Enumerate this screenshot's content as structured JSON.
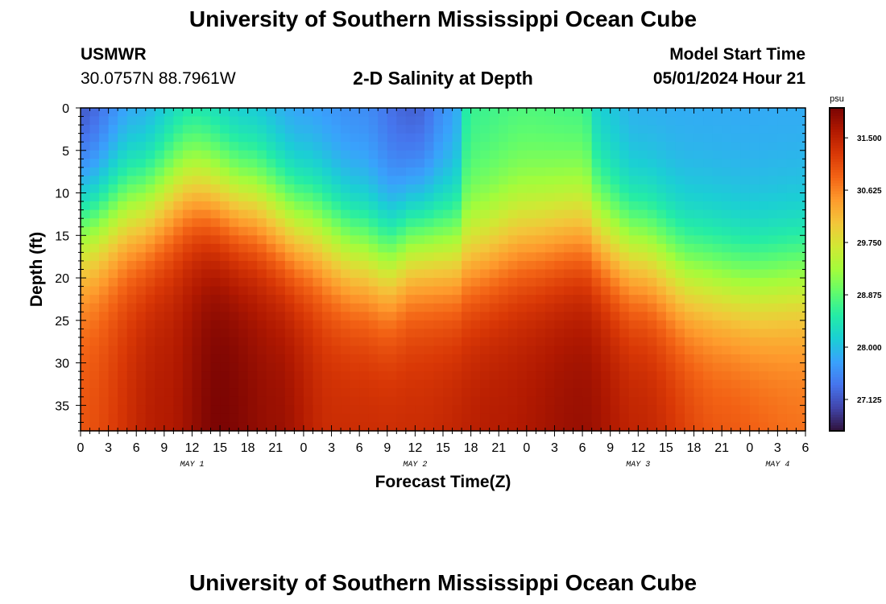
{
  "header": {
    "title_top": "University of Southern Mississippi Ocean Cube",
    "title_bottom": "University of Southern Mississippi Ocean Cube",
    "station": "USMWR",
    "coords": "30.0757N  88.7961W",
    "subtitle": "2-D Salinity at Depth",
    "model_start_label": "Model Start Time",
    "model_start_value": "05/01/2024 Hour 21"
  },
  "chart_data": {
    "type": "heatmap",
    "title": "2-D Salinity at Depth",
    "xlabel": "Forecast Time(Z)",
    "ylabel": "Depth (ft)",
    "colorbar_label": "psu",
    "x_range_hours": [
      0,
      78
    ],
    "y_range_ft": [
      0,
      38
    ],
    "x_tick_labels": [
      "0",
      "3",
      "6",
      "9",
      "12",
      "15",
      "18",
      "21",
      "0",
      "3",
      "6",
      "9",
      "12",
      "15",
      "18",
      "21",
      "0",
      "3",
      "6",
      "9",
      "12",
      "15",
      "18",
      "21",
      "0",
      "3",
      "6"
    ],
    "x_tick_step_hours": 3,
    "day_labels": [
      {
        "label": "MAY 1",
        "hour": 12
      },
      {
        "label": "MAY 2",
        "hour": 36
      },
      {
        "label": "MAY 3",
        "hour": 60
      },
      {
        "label": "MAY 4",
        "hour": 75
      }
    ],
    "y_ticks": [
      0,
      5,
      10,
      15,
      20,
      25,
      30,
      35
    ],
    "colorbar_range": [
      26.6,
      32.0
    ],
    "colorbar_ticks": [
      "27.125",
      "28.000",
      "28.875",
      "29.750",
      "30.625",
      "31.500"
    ],
    "colorbar_tick_values": [
      27.125,
      28.0,
      28.875,
      29.75,
      30.625,
      31.5
    ],
    "colormap": [
      "#30123b",
      "#4145ab",
      "#4675ed",
      "#39a2fc",
      "#1bcfd4",
      "#24eca6",
      "#61fc6c",
      "#a4fc3b",
      "#d1e834",
      "#f3c63a",
      "#fe9b2d",
      "#f36315",
      "#d93806",
      "#b11901",
      "#7a0403"
    ],
    "surface_salinity": [
      {
        "hour": 0,
        "value": 27.0
      },
      {
        "hour": 6,
        "value": 27.6
      },
      {
        "hour": 12,
        "value": 28.0
      },
      {
        "hour": 18,
        "value": 27.8
      },
      {
        "hour": 24,
        "value": 27.6
      },
      {
        "hour": 30,
        "value": 27.5
      },
      {
        "hour": 36,
        "value": 27.1
      },
      {
        "hour": 40,
        "value": 27.6
      },
      {
        "hour": 42,
        "value": 28.6
      },
      {
        "hour": 48,
        "value": 28.7
      },
      {
        "hour": 54,
        "value": 28.6
      },
      {
        "hour": 56,
        "value": 28.0
      },
      {
        "hour": 60,
        "value": 27.8
      },
      {
        "hour": 66,
        "value": 27.8
      },
      {
        "hour": 72,
        "value": 27.8
      },
      {
        "hour": 78,
        "value": 27.8
      }
    ],
    "bottom_salinity": [
      {
        "hour": 0,
        "value": 31.0
      },
      {
        "hour": 9,
        "value": 31.6
      },
      {
        "hour": 15,
        "value": 32.0
      },
      {
        "hour": 21,
        "value": 31.8
      },
      {
        "hour": 27,
        "value": 31.4
      },
      {
        "hour": 36,
        "value": 31.4
      },
      {
        "hour": 45,
        "value": 31.6
      },
      {
        "hour": 54,
        "value": 31.8
      },
      {
        "hour": 60,
        "value": 31.5
      },
      {
        "hour": 69,
        "value": 31.0
      },
      {
        "hour": 78,
        "value": 30.8
      }
    ],
    "halocline_center_ft": [
      {
        "hour": 0,
        "value": 14
      },
      {
        "hour": 6,
        "value": 12
      },
      {
        "hour": 12,
        "value": 9
      },
      {
        "hour": 18,
        "value": 11
      },
      {
        "hour": 24,
        "value": 14
      },
      {
        "hour": 30,
        "value": 17
      },
      {
        "hour": 33,
        "value": 18
      },
      {
        "hour": 36,
        "value": 16
      },
      {
        "hour": 42,
        "value": 17
      },
      {
        "hour": 48,
        "value": 15
      },
      {
        "hour": 54,
        "value": 14
      },
      {
        "hour": 60,
        "value": 17
      },
      {
        "hour": 66,
        "value": 20
      },
      {
        "hour": 72,
        "value": 21
      },
      {
        "hour": 78,
        "value": 20
      }
    ]
  }
}
